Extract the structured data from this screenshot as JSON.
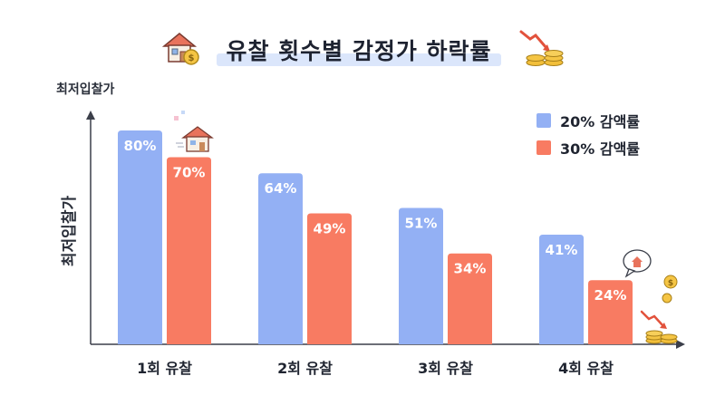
{
  "title": "유찰 횟수별 감정가 하락률",
  "icons": {
    "title_left": "house-coin-icon",
    "title_right": "falling-coins-icon",
    "bar_decor": "house-icon",
    "bubble": "house-speech-icon",
    "coins": "coin-stack-icon",
    "dollar": "dollar-coin-icon"
  },
  "colors": {
    "series1": "#93b0f4",
    "series2": "#f87b62",
    "axis": "#3b3f4a"
  },
  "chart_data": {
    "type": "bar",
    "title": "유찰 횟수별 감정가 하락률",
    "xlabel": "",
    "ylabel": "최저입찰가",
    "ylabel_top": "최저입찰가",
    "ylim": [
      0,
      100
    ],
    "grid": false,
    "legend_position": "top-right",
    "categories": [
      "1회 유찰",
      "2회 유찰",
      "3회 유찰",
      "4회 유찰"
    ],
    "series": [
      {
        "name": "20% 감액률",
        "values": [
          80,
          64,
          51,
          41
        ],
        "labels": [
          "80%",
          "64%",
          "51%",
          "41%"
        ],
        "color": "#93b0f4"
      },
      {
        "name": "30% 감액률",
        "values": [
          70,
          49,
          34,
          24
        ],
        "labels": [
          "70%",
          "49%",
          "34%",
          "24%"
        ],
        "color": "#f87b62"
      }
    ]
  }
}
